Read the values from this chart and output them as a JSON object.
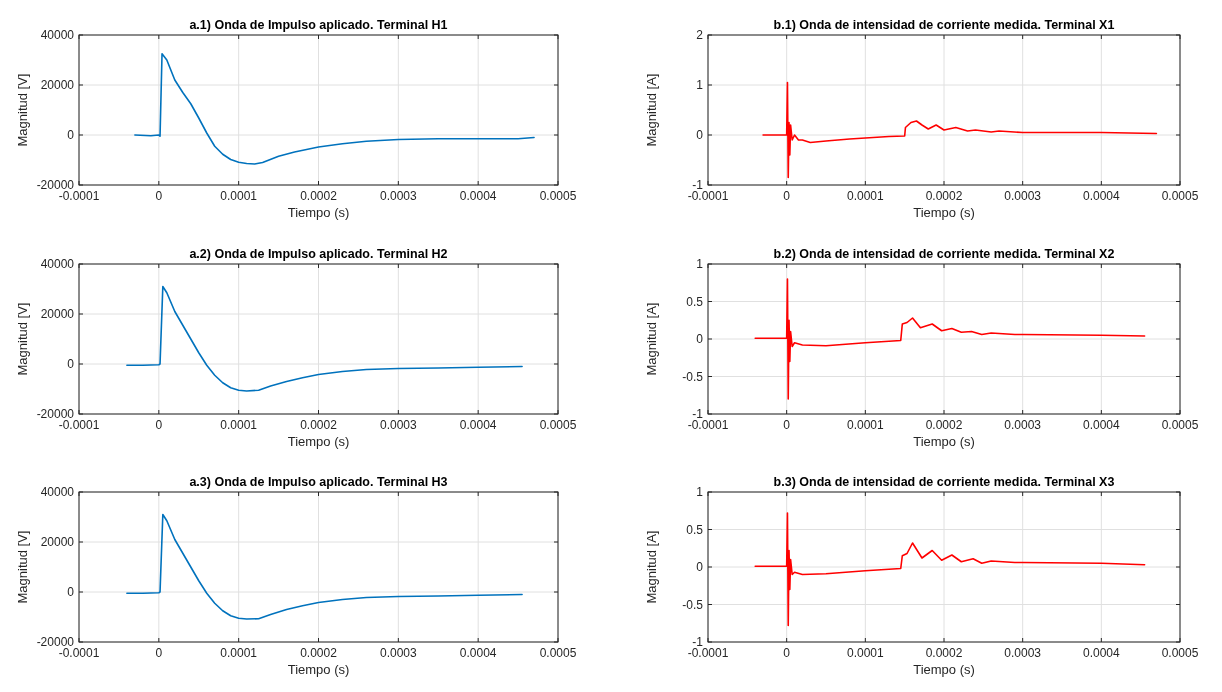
{
  "chart_data": [
    {
      "type": "line",
      "title": "a.1) Onda de Impulso aplicado. Terminal H1",
      "xlabel": "Tiempo (s)",
      "ylabel": "Magnitud [V]",
      "xlim": [
        -0.0001,
        0.0005
      ],
      "xticks": [
        -0.0001,
        0,
        0.0001,
        0.0002,
        0.0003,
        0.0004,
        0.0005
      ],
      "ylim": [
        -20000,
        40000
      ],
      "yticks": [
        -20000,
        0,
        20000,
        40000
      ],
      "grid": true,
      "series": [
        {
          "color": "#0072bd",
          "x": [
            -3e-05,
            -1e-05,
            0,
            1.5e-06,
            4e-06,
            1e-05,
            2e-05,
            3e-05,
            4e-05,
            5e-05,
            6e-05,
            7e-05,
            8e-05,
            9e-05,
            0.0001,
            0.00011,
            0.00012,
            0.00013,
            0.00015,
            0.00017,
            0.0002,
            0.00023,
            0.00026,
            0.0003,
            0.00035,
            0.0004,
            0.00045,
            0.00047
          ],
          "values": [
            0,
            -300,
            0,
            -500,
            32500,
            30000,
            22000,
            17000,
            12500,
            6800,
            800,
            -4500,
            -7700,
            -9800,
            -10900,
            -11400,
            -11600,
            -11000,
            -8500,
            -6800,
            -4800,
            -3500,
            -2500,
            -1800,
            -1500,
            -1500,
            -1500,
            -1000
          ]
        }
      ]
    },
    {
      "type": "line",
      "title": "b.1) Onda de intensidad de corriente medida. Terminal X1",
      "xlabel": "Tiempo (s)",
      "ylabel": "Magnitud [A]",
      "xlim": [
        -0.0001,
        0.0005
      ],
      "xticks": [
        -0.0001,
        0,
        0.0001,
        0.0002,
        0.0003,
        0.0004,
        0.0005
      ],
      "ylim": [
        -1,
        2
      ],
      "yticks": [
        -1,
        0,
        1,
        2
      ],
      "grid": true,
      "series": [
        {
          "color": "#ff0000",
          "x": [
            -3e-05,
            0,
            1e-06,
            2e-06,
            3e-06,
            4e-06,
            5e-06,
            7e-06,
            1e-05,
            1.5e-05,
            2e-05,
            3e-05,
            5e-05,
            8e-05,
            0.0001,
            0.00013,
            0.00015,
            0.000151,
            0.000158,
            0.000165,
            0.000172,
            0.00018,
            0.00019,
            0.0002,
            0.000215,
            0.00023,
            0.00024,
            0.00026,
            0.00027,
            0.0003,
            0.00035,
            0.0004,
            0.00047
          ],
          "values": [
            0,
            0,
            1.05,
            -0.85,
            0.25,
            -0.4,
            0.2,
            -0.1,
            0,
            -0.1,
            -0.1,
            -0.15,
            -0.12,
            -0.08,
            -0.06,
            -0.03,
            -0.02,
            0.15,
            0.25,
            0.28,
            0.2,
            0.12,
            0.2,
            0.1,
            0.15,
            0.08,
            0.1,
            0.06,
            0.08,
            0.05,
            0.05,
            0.05,
            0.03
          ]
        }
      ]
    },
    {
      "type": "line",
      "title": "a.2) Onda de Impulso aplicado. Terminal H2",
      "xlabel": "Tiempo (s)",
      "ylabel": "Magnitud [V]",
      "xlim": [
        -0.0001,
        0.0005
      ],
      "xticks": [
        -0.0001,
        0,
        0.0001,
        0.0002,
        0.0003,
        0.0004,
        0.0005
      ],
      "ylim": [
        -20000,
        40000
      ],
      "yticks": [
        -20000,
        0,
        20000,
        40000
      ],
      "grid": true,
      "series": [
        {
          "color": "#0072bd",
          "x": [
            -4e-05,
            -2e-05,
            0,
            1.5e-06,
            5e-06,
            1e-05,
            2e-05,
            3e-05,
            4e-05,
            5e-05,
            6e-05,
            7e-05,
            8e-05,
            9e-05,
            0.0001,
            0.00011,
            0.000125,
            0.00014,
            0.00016,
            0.00018,
            0.0002,
            0.00023,
            0.00026,
            0.0003,
            0.00035,
            0.0004,
            0.000455
          ],
          "values": [
            -500,
            -500,
            -300,
            0,
            31000,
            28500,
            21000,
            15500,
            10000,
            4500,
            -500,
            -4500,
            -7500,
            -9500,
            -10500,
            -10800,
            -10500,
            -8800,
            -7000,
            -5500,
            -4200,
            -3000,
            -2200,
            -1800,
            -1600,
            -1300,
            -1000
          ]
        }
      ]
    },
    {
      "type": "line",
      "title": "b.2) Onda de intensidad de corriente medida. Terminal X2",
      "xlabel": "Tiempo (s)",
      "ylabel": "Magnitud [A]",
      "xlim": [
        -0.0001,
        0.0005
      ],
      "xticks": [
        -0.0001,
        0,
        0.0001,
        0.0002,
        0.0003,
        0.0004,
        0.0005
      ],
      "ylim": [
        -1,
        1
      ],
      "yticks": [
        -1,
        -0.5,
        0,
        0.5,
        1
      ],
      "grid": true,
      "series": [
        {
          "color": "#ff0000",
          "x": [
            -4e-05,
            0,
            1e-06,
            2e-06,
            3e-06,
            4e-06,
            5e-06,
            7e-06,
            1e-05,
            2e-05,
            5e-05,
            0.0001,
            0.000145,
            0.000147,
            0.000153,
            0.00016,
            0.00017,
            0.000185,
            0.000197,
            0.00021,
            0.000222,
            0.000235,
            0.000248,
            0.00026,
            0.00029,
            0.0003,
            0.0004,
            0.000455
          ],
          "values": [
            0.01,
            0.01,
            0.8,
            -0.8,
            0.25,
            -0.3,
            0.1,
            -0.1,
            -0.05,
            -0.08,
            -0.09,
            -0.05,
            -0.02,
            0.2,
            0.22,
            0.28,
            0.15,
            0.2,
            0.11,
            0.14,
            0.09,
            0.1,
            0.06,
            0.08,
            0.06,
            0.06,
            0.05,
            0.04
          ]
        }
      ]
    },
    {
      "type": "line",
      "title": "a.3) Onda de Impulso aplicado. Terminal H3",
      "xlabel": "Tiempo (s)",
      "ylabel": "Magnitud [V]",
      "xlim": [
        -0.0001,
        0.0005
      ],
      "xticks": [
        -0.0001,
        0,
        0.0001,
        0.0002,
        0.0003,
        0.0004,
        0.0005
      ],
      "ylim": [
        -20000,
        40000
      ],
      "yticks": [
        -20000,
        0,
        20000,
        40000
      ],
      "grid": true,
      "series": [
        {
          "color": "#0072bd",
          "x": [
            -4e-05,
            -2e-05,
            0,
            1.5e-06,
            5e-06,
            1e-05,
            2e-05,
            3e-05,
            4e-05,
            5e-05,
            6e-05,
            7e-05,
            8e-05,
            9e-05,
            0.0001,
            0.00011,
            0.000125,
            0.00014,
            0.00016,
            0.00018,
            0.0002,
            0.00023,
            0.00026,
            0.0003,
            0.00035,
            0.0004,
            0.000455
          ],
          "values": [
            -500,
            -500,
            -300,
            0,
            31000,
            28500,
            21000,
            15500,
            10000,
            4500,
            -500,
            -4500,
            -7500,
            -9500,
            -10500,
            -10800,
            -10700,
            -9000,
            -7000,
            -5500,
            -4200,
            -3000,
            -2200,
            -1800,
            -1600,
            -1300,
            -1000
          ]
        }
      ]
    },
    {
      "type": "line",
      "title": "b.3) Onda de intensidad de corriente medida. Terminal X3",
      "xlabel": "Tiempo (s)",
      "ylabel": "Magnitud [A]",
      "xlim": [
        -0.0001,
        0.0005
      ],
      "xticks": [
        -0.0001,
        0,
        0.0001,
        0.0002,
        0.0003,
        0.0004,
        0.0005
      ],
      "ylim": [
        -1,
        1
      ],
      "yticks": [
        -1,
        -0.5,
        0,
        0.5,
        1
      ],
      "grid": true,
      "series": [
        {
          "color": "#ff0000",
          "x": [
            -4e-05,
            0,
            1e-06,
            2e-06,
            3e-06,
            4e-06,
            5e-06,
            7e-06,
            1e-05,
            2e-05,
            5e-05,
            0.0001,
            0.000145,
            0.000147,
            0.000153,
            0.00016,
            0.000172,
            0.000185,
            0.000197,
            0.00021,
            0.000222,
            0.000237,
            0.000248,
            0.00026,
            0.00029,
            0.0003,
            0.0004,
            0.000455
          ],
          "values": [
            0.01,
            0.01,
            0.72,
            -0.78,
            0.22,
            -0.3,
            0.1,
            -0.1,
            -0.07,
            -0.1,
            -0.09,
            -0.05,
            -0.02,
            0.15,
            0.18,
            0.32,
            0.12,
            0.22,
            0.09,
            0.16,
            0.07,
            0.11,
            0.05,
            0.08,
            0.06,
            0.06,
            0.05,
            0.03
          ]
        }
      ]
    }
  ]
}
